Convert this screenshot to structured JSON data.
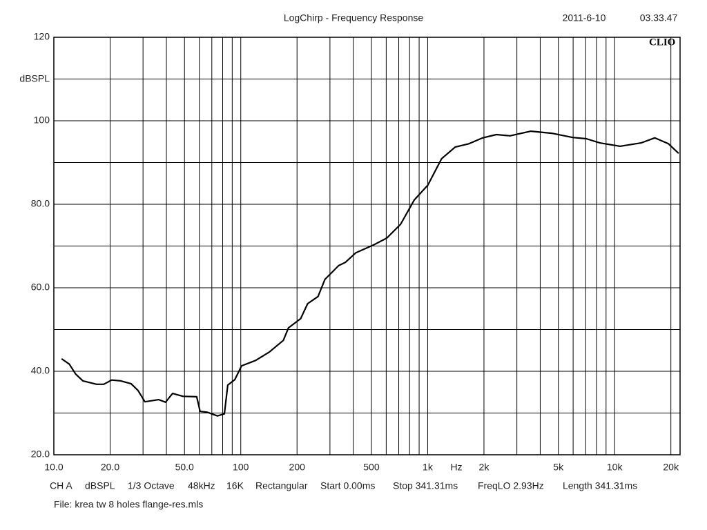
{
  "chart_data": {
    "type": "line",
    "title": "LogChirp - Frequency Response",
    "date": "2011-6-10",
    "time": "03.33.47",
    "brand": "CLIO",
    "xlabel": "Hz",
    "ylabel": "dBSPL",
    "log_x": true,
    "grid": true,
    "color": "#000000",
    "xlim": [
      10,
      22400
    ],
    "ylim": [
      20,
      120
    ],
    "xticks": [
      {
        "value": 10,
        "label": "10.0"
      },
      {
        "value": 20,
        "label": "20.0"
      },
      {
        "value": 50,
        "label": "50.0"
      },
      100,
      200,
      500,
      {
        "value": 1000,
        "label": "1k"
      },
      {
        "value": 2000,
        "label": "2k"
      },
      {
        "value": 5000,
        "label": "5k"
      },
      {
        "value": 10000,
        "label": "10k"
      },
      {
        "value": 20000,
        "label": "20k"
      }
    ],
    "xminor": [
      30,
      40,
      60,
      70,
      80,
      90,
      300,
      400,
      600,
      700,
      800,
      900,
      3000,
      4000,
      6000,
      7000,
      8000,
      9000
    ],
    "yticks": [
      120,
      100,
      {
        "value": 80,
        "label": "80.0"
      },
      {
        "value": 60,
        "label": "60.0"
      },
      {
        "value": 40,
        "label": "40.0"
      },
      {
        "value": 20,
        "label": "20.0"
      }
    ],
    "yminor": [
      110,
      90,
      70,
      50,
      30
    ],
    "x": [
      11,
      12.1,
      13.1,
      14.3,
      16.9,
      18.5,
      20.4,
      22.8,
      25.9,
      28.2,
      30.7,
      36.4,
      39.6,
      43.2,
      49.1,
      58.1,
      60.6,
      66.1,
      75,
      81.7,
      85.2,
      92.9,
      101,
      120,
      142,
      169,
      180,
      209,
      228,
      259,
      282,
      334,
      363,
      413,
      510,
      604,
      716,
      847,
      1002,
      1186,
      1404,
      1662,
      1968,
      2330,
      2758,
      3565,
      4610,
      5961,
      7050,
      8340,
      10700,
      13850,
      16400,
      19400,
      22000
    ],
    "values": [
      43.0,
      41.7,
      39.3,
      37.7,
      36.9,
      36.9,
      37.9,
      37.7,
      37.0,
      35.4,
      32.7,
      33.2,
      32.6,
      34.7,
      34.0,
      33.9,
      30.4,
      30.2,
      29.3,
      29.8,
      36.7,
      38.0,
      41.3,
      42.6,
      44.6,
      47.4,
      50.4,
      52.6,
      56.2,
      57.9,
      62.0,
      65.3,
      66.1,
      68.4,
      70.2,
      71.9,
      75.2,
      81.0,
      84.6,
      90.9,
      93.7,
      94.5,
      95.9,
      96.7,
      96.4,
      97.5,
      97.0,
      96.0,
      95.7,
      94.7,
      93.9,
      94.7,
      95.9,
      94.5,
      92.2
    ]
  },
  "footer": {
    "settings": [
      "CH A",
      "dBSPL",
      "1/3 Octave",
      "48kHz",
      "16K",
      "Rectangular",
      "Start 0.00ms",
      "Stop 341.31ms",
      "FreqLO 2.93Hz",
      "Length 341.31ms"
    ],
    "file": "File: krea tw 8 holes flange-res.mls"
  }
}
